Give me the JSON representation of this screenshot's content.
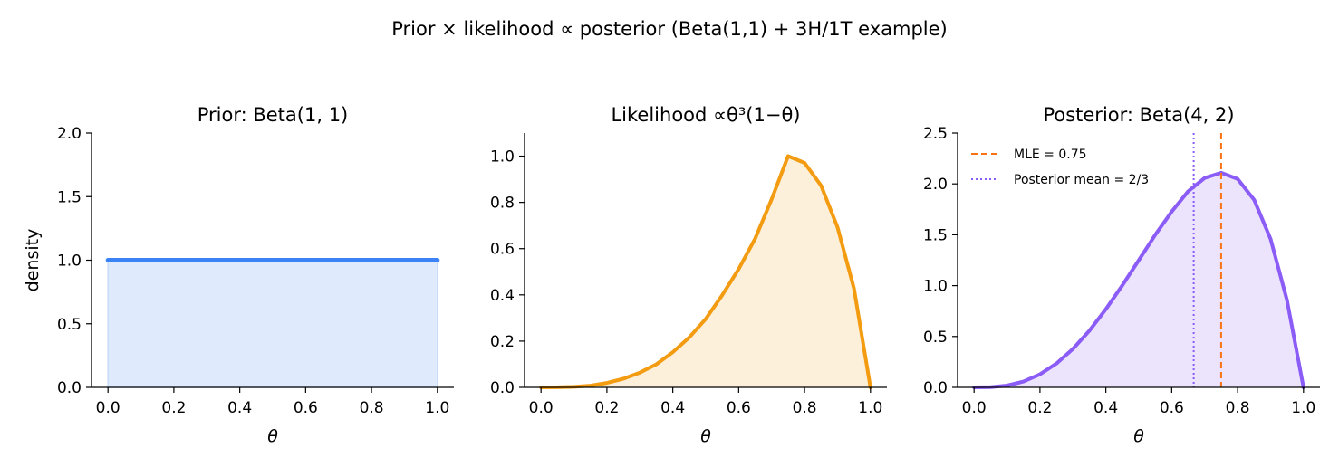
{
  "figure": {
    "suptitle": "Prior × likelihood ∝ posterior (Beta(1,1) + 3H/1T example)"
  },
  "colors": {
    "prior": "#3b82f6",
    "prior_fill": "#dfeafc",
    "likelihood": "#f39c12",
    "likelihood_fill": "#fcf0db",
    "posterior": "#8b5cf6",
    "posterior_fill": "#ece4fd",
    "mle_line": "#f97316",
    "mean_line": "#8b5cf6"
  },
  "chart_data": [
    {
      "type": "area",
      "title": "Prior: Beta(1, 1)",
      "xlabel": "θ",
      "ylabel": "density",
      "xlim": [
        -0.05,
        1.05
      ],
      "ylim": [
        0,
        2.0
      ],
      "xticks": [
        "0.0",
        "0.2",
        "0.4",
        "0.6",
        "0.8",
        "1.0"
      ],
      "yticks": [
        "0.0",
        "0.5",
        "1.0",
        "1.5",
        "2.0"
      ],
      "series": [
        {
          "x": [
            0.0,
            0.1,
            0.2,
            0.3,
            0.4,
            0.5,
            0.6,
            0.7,
            0.8,
            0.9,
            1.0
          ],
          "y": [
            1.0,
            1.0,
            1.0,
            1.0,
            1.0,
            1.0,
            1.0,
            1.0,
            1.0,
            1.0,
            1.0
          ]
        }
      ]
    },
    {
      "type": "area",
      "title": "Likelihood ∝θ³(1−θ)",
      "xlabel": "θ",
      "ylabel": "",
      "xlim": [
        -0.05,
        1.05
      ],
      "ylim": [
        0,
        1.1
      ],
      "xticks": [
        "0.0",
        "0.2",
        "0.4",
        "0.6",
        "0.8",
        "1.0"
      ],
      "yticks": [
        "0.0",
        "0.2",
        "0.4",
        "0.6",
        "0.8",
        "1.0"
      ],
      "series": [
        {
          "x": [
            0.0,
            0.05,
            0.1,
            0.15,
            0.2,
            0.25,
            0.3,
            0.35,
            0.4,
            0.45,
            0.5,
            0.55,
            0.6,
            0.65,
            0.7,
            0.75,
            0.8,
            0.85,
            0.9,
            0.95,
            1.0
          ],
          "y": [
            0.0,
            0.0003,
            0.0024,
            0.0076,
            0.019,
            0.037,
            0.064,
            0.1,
            0.152,
            0.216,
            0.296,
            0.399,
            0.512,
            0.643,
            0.813,
            1.0,
            0.971,
            0.873,
            0.692,
            0.428,
            0.0
          ]
        }
      ]
    },
    {
      "type": "area",
      "title": "Posterior: Beta(4, 2)",
      "xlabel": "θ",
      "ylabel": "",
      "xlim": [
        -0.05,
        1.05
      ],
      "ylim": [
        0,
        2.5
      ],
      "xticks": [
        "0.0",
        "0.2",
        "0.4",
        "0.6",
        "0.8",
        "1.0"
      ],
      "yticks": [
        "0.0",
        "0.5",
        "1.0",
        "1.5",
        "2.0",
        "2.5"
      ],
      "legend": {
        "position": "upper-left",
        "entries": [
          {
            "label": "MLE  = 0.75",
            "style": "dashed",
            "value": 0.75
          },
          {
            "label": "Posterior mean  = 2/3",
            "style": "dotted",
            "value": 0.6667
          }
        ]
      },
      "series": [
        {
          "x": [
            0.0,
            0.05,
            0.1,
            0.15,
            0.2,
            0.25,
            0.3,
            0.35,
            0.4,
            0.45,
            0.5,
            0.55,
            0.6,
            0.65,
            0.7,
            0.75,
            0.8,
            0.85,
            0.9,
            0.95,
            1.0
          ],
          "y": [
            0.0,
            0.0024,
            0.018,
            0.057,
            0.128,
            0.234,
            0.378,
            0.557,
            0.768,
            1.002,
            1.25,
            1.5,
            1.728,
            1.927,
            2.058,
            2.109,
            2.048,
            1.844,
            1.458,
            0.857,
            0.0
          ]
        }
      ]
    }
  ]
}
